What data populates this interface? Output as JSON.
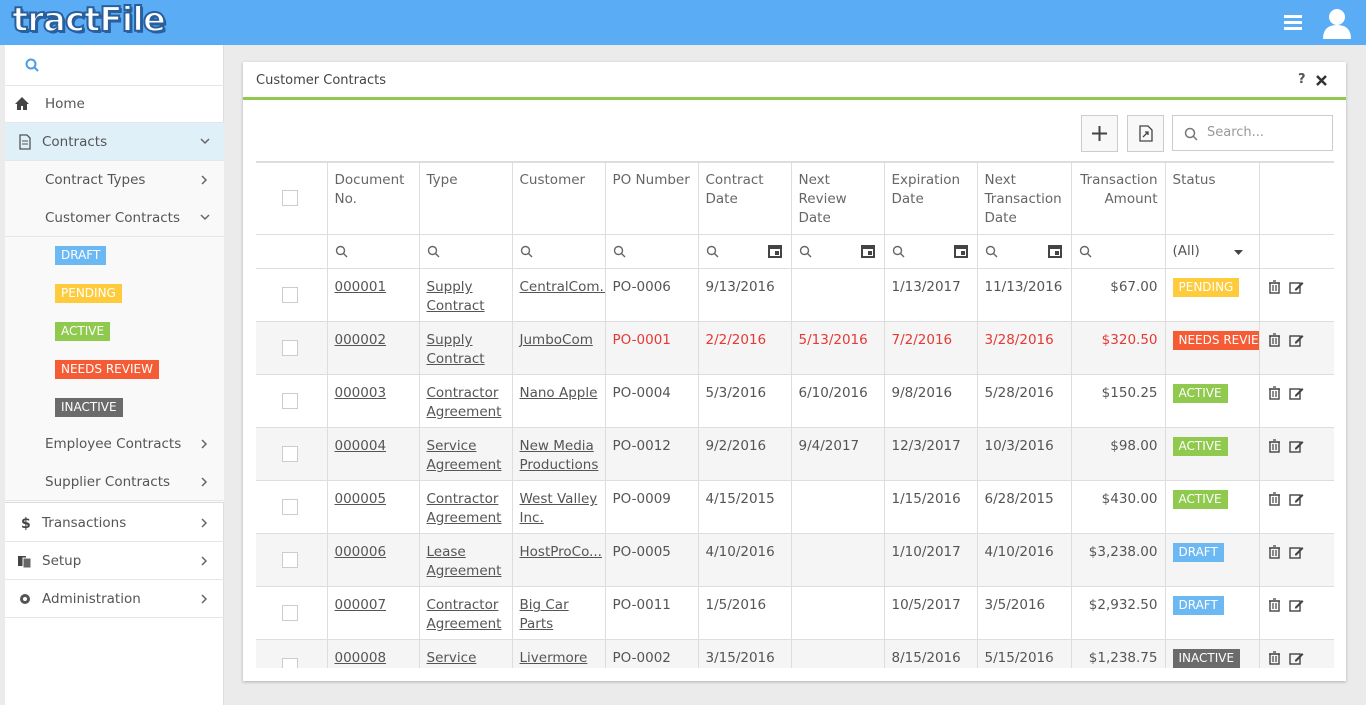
{
  "header": {
    "logo": "tractFile"
  },
  "sidebar": {
    "items": [
      {
        "label": "Home"
      },
      {
        "label": "Contracts",
        "children": [
          {
            "label": "Contract Types"
          },
          {
            "label": "Customer Contracts"
          },
          {
            "label": "Employee Contracts"
          },
          {
            "label": "Supplier Contracts"
          }
        ]
      },
      {
        "label": "Transactions"
      },
      {
        "label": "Setup"
      },
      {
        "label": "Administration"
      }
    ],
    "status_filters": [
      {
        "label": "DRAFT",
        "color": "#6cb8f2"
      },
      {
        "label": "PENDING",
        "color": "#fdcb3c"
      },
      {
        "label": "ACTIVE",
        "color": "#8fc94e"
      },
      {
        "label": "NEEDS REVIEW",
        "color": "#f55b34"
      },
      {
        "label": "INACTIVE",
        "color": "#6b6b6b"
      }
    ]
  },
  "panel": {
    "title": "Customer Contracts",
    "help": "?",
    "search_placeholder": "Search...",
    "columns": [
      "Document No.",
      "Type",
      "Customer",
      "PO Number",
      "Contract Date",
      "Next Review Date",
      "Expiration Date",
      "Next Transaction Date",
      "Transaction Amount",
      "Status"
    ],
    "status_filter": "(All)",
    "rows": [
      {
        "alert": false,
        "cells": [
          "000001",
          "Supply Contract",
          "CentralCom...",
          "PO-0006",
          "9/13/2016",
          null,
          "1/13/2017",
          "11/13/2016",
          "$67.00",
          "PENDING"
        ]
      },
      {
        "alert": true,
        "cells": [
          "000002",
          "Supply Contract",
          "JumboCom",
          "PO-0001",
          "2/2/2016",
          "5/13/2016",
          "7/2/2016",
          "3/28/2016",
          "$320.50",
          "NEEDS REVIEW"
        ]
      },
      {
        "alert": false,
        "cells": [
          "000003",
          "Contractor Agreement",
          "Nano Apple",
          "PO-0004",
          "5/3/2016",
          "6/10/2016",
          "9/8/2016",
          "5/28/2016",
          "$150.25",
          "ACTIVE"
        ]
      },
      {
        "alert": false,
        "cells": [
          "000004",
          "Service Agreement",
          "New Media Productions",
          "PO-0012",
          "9/2/2016",
          "9/4/2017",
          "12/3/2017",
          "10/3/2016",
          "$98.00",
          "ACTIVE"
        ]
      },
      {
        "alert": false,
        "cells": [
          "000005",
          "Contractor Agreement",
          "West Valley Inc.",
          "PO-0009",
          "4/15/2015",
          null,
          "1/15/2016",
          "6/28/2015",
          "$430.00",
          "ACTIVE"
        ]
      },
      {
        "alert": false,
        "cells": [
          "000006",
          "Lease Agreement",
          "HostProCo...",
          "PO-0005",
          "4/10/2016",
          null,
          "1/10/2017",
          "4/10/2016",
          "$3,238.00",
          "DRAFT"
        ]
      },
      {
        "alert": false,
        "cells": [
          "000007",
          "Contractor Agreement",
          "Big Car Parts",
          "PO-0011",
          "1/5/2016",
          null,
          "10/5/2017",
          "3/5/2016",
          "$2,932.50",
          "DRAFT"
        ]
      },
      {
        "alert": false,
        "cells": [
          "000008",
          "Service",
          "Livermore",
          "PO-0002",
          "3/15/2016",
          null,
          "8/15/2016",
          "5/15/2016",
          "$1,238.75",
          "INACTIVE"
        ]
      }
    ]
  }
}
